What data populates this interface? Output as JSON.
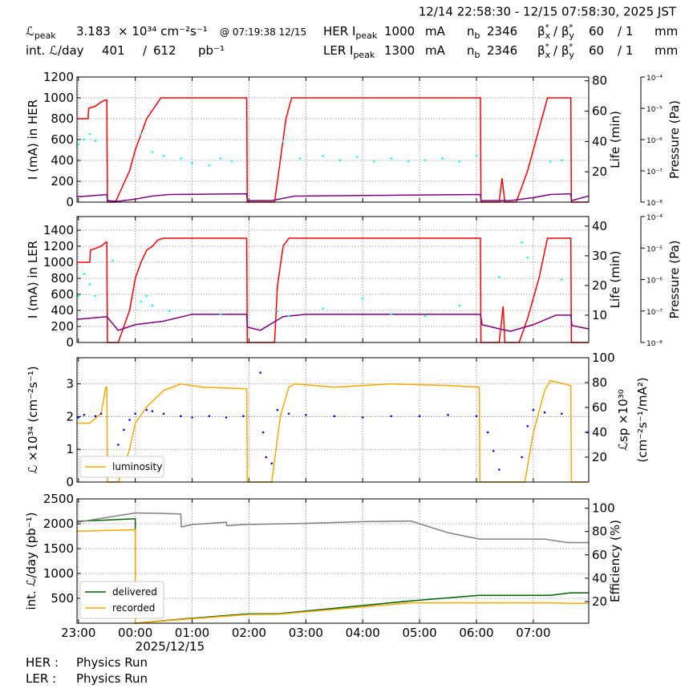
{
  "header": {
    "timespan": "12/14 22:58:30 - 12/15 07:58:30, 2025 JST",
    "row1": [
      {
        "text": "ℒ",
        "sub": "peak"
      },
      "3.183",
      "× 10³⁴ cm⁻²s⁻¹",
      "@ 07:19:38 12/15",
      {
        "text": "HER I",
        "sub": "peak"
      },
      "1000",
      "mA",
      {
        "text": "n",
        "sub": "b"
      },
      "2346",
      {
        "text": "β",
        "sup": "*",
        "sub": "x"
      },
      {
        "text": "/ β",
        "sup": "*",
        "sub": "y"
      },
      "60",
      "/ 1",
      "mm"
    ],
    "row2": [
      "int. ℒ/day",
      "401",
      "/",
      "612",
      "pb⁻¹",
      {
        "text": "LER I",
        "sub": "peak"
      },
      "1300",
      "mA",
      {
        "text": "n",
        "sub": "b"
      },
      "2346",
      {
        "text": "β",
        "sup": "*",
        "sub": "x"
      },
      {
        "text": "/ β",
        "sup": "*",
        "sub": "y"
      },
      "60",
      "/ 1",
      "mm"
    ]
  },
  "footer": [
    [
      "HER :",
      "Physics Run"
    ],
    [
      "LER :",
      "Physics Run"
    ]
  ],
  "chart_data": [
    {
      "type": "line",
      "ylabel": "I (mA) in HER",
      "y2label": [
        "Life (min)"
      ],
      "y3label": "Pressure (Pa)",
      "grid": true,
      "xlim": [
        -1.025,
        7.975
      ],
      "xticks": [
        -1,
        0,
        1,
        2,
        3,
        4,
        5,
        6,
        7
      ],
      "ylim": [
        0,
        1200
      ],
      "yticks": [
        0,
        200,
        400,
        600,
        800,
        1000,
        1200
      ],
      "y2lim": [
        0,
        82.5
      ],
      "y2ticks": [
        20,
        40,
        60,
        80
      ],
      "y3scale": "log",
      "y3lim": [
        1e-08,
        0.0001
      ],
      "y3ticks": [
        {
          "value": 1e-08,
          "label": "10⁻⁸"
        },
        {
          "value": 1e-07,
          "label": "10⁻⁷"
        },
        {
          "value": 1e-06,
          "label": "10⁻⁶"
        },
        {
          "value": 1e-05,
          "label": "10⁻⁵"
        },
        {
          "value": 0.0001,
          "label": "10⁻⁴"
        }
      ],
      "series": [
        {
          "type": "line",
          "axis": "y",
          "color": "#ff0000",
          "x": [
            -1.025,
            -0.83,
            -0.82,
            -0.7,
            -0.6,
            -0.52,
            -0.5,
            -0.49,
            -0.35,
            -0.1,
            0,
            0.2,
            0.45,
            0.55,
            1.96,
            1.97,
            2.45,
            2.55,
            2.65,
            2.75,
            6.07,
            6.08,
            6.4,
            6.45,
            6.5,
            6.7,
            6.9,
            7.1,
            7.25,
            7.66,
            7.67,
            7.97
          ],
          "values": [
            800,
            800,
            900,
            920,
            960,
            980,
            980,
            0,
            0,
            300,
            500,
            800,
            1000,
            1000,
            1000,
            0,
            0,
            400,
            800,
            1000,
            1000,
            0,
            0,
            230,
            0,
            0,
            300,
            700,
            1000,
            1000,
            0,
            0
          ]
        },
        {
          "type": "line",
          "axis": "y2",
          "color": "#800080",
          "x": [
            -1.025,
            -0.5,
            -0.49,
            -0.3,
            0,
            0.3,
            0.6,
            1.96,
            1.97,
            2.4,
            2.8,
            6.07,
            6.08,
            6.6,
            7.0,
            7.3,
            7.66,
            7.67,
            7.97
          ],
          "values": [
            3.5,
            5,
            1,
            0.5,
            2,
            4,
            5,
            5.5,
            1,
            1,
            4,
            5,
            1,
            1,
            3,
            5,
            5.5,
            1,
            4
          ]
        },
        {
          "type": "scatter",
          "axis": "y3",
          "color": "#00ffff",
          "x": [
            -1.0,
            -0.9,
            -0.8,
            -0.7,
            0.1,
            0.3,
            0.5,
            0.8,
            1.0,
            1.3,
            1.5,
            1.7,
            2.6,
            2.9,
            3.3,
            3.6,
            3.9,
            4.2,
            4.5,
            4.8,
            5.1,
            5.4,
            5.7,
            6.0,
            7.3,
            7.5
          ],
          "values": [
            7e-07,
            1e-06,
            1.5e-06,
            9e-07,
            1.5e-06,
            4e-07,
            3e-07,
            2.5e-07,
            1.8e-07,
            1.5e-07,
            2.5e-07,
            2e-07,
            9e-07,
            2.5e-07,
            3e-07,
            2.2e-07,
            2.8e-07,
            2e-07,
            2.5e-07,
            2e-07,
            2.2e-07,
            2.5e-07,
            2e-07,
            3e-07,
            2e-07,
            2.2e-07
          ]
        }
      ]
    },
    {
      "type": "line",
      "ylabel": "I (mA) in LER",
      "y2label": [
        "Life (min)"
      ],
      "y3label": "Pressure (Pa)",
      "grid": true,
      "xlim": [
        -1.025,
        7.975
      ],
      "xticks": [
        -1,
        0,
        1,
        2,
        3,
        4,
        5,
        6,
        7
      ],
      "ylim": [
        0,
        1570
      ],
      "yticks": [
        0,
        200,
        400,
        600,
        800,
        1000,
        1200,
        1400
      ],
      "y2lim": [
        0.8,
        43.2
      ],
      "y2ticks": [
        10,
        20,
        30,
        40
      ],
      "y3scale": "log",
      "y3lim": [
        1e-08,
        0.0001
      ],
      "y3ticks": [
        {
          "value": 1e-08,
          "label": "10⁻⁸"
        },
        {
          "value": 1e-07,
          "label": "10⁻⁷"
        },
        {
          "value": 1e-06,
          "label": "10⁻⁶"
        },
        {
          "value": 1e-05,
          "label": "10⁻⁵"
        },
        {
          "value": 0.0001,
          "label": "10⁻⁴"
        }
      ],
      "series": [
        {
          "type": "line",
          "axis": "y",
          "color": "#ff0000",
          "x": [
            -1.025,
            -0.8,
            -0.79,
            -0.6,
            -0.52,
            -0.5,
            -0.49,
            -0.3,
            -0.1,
            0,
            0.1,
            0.2,
            0.3,
            0.4,
            0.5,
            1.96,
            1.97,
            2.45,
            2.5,
            2.6,
            2.7,
            6.07,
            6.08,
            6.4,
            6.47,
            6.5,
            6.75,
            6.9,
            7.1,
            7.25,
            7.66,
            7.67,
            7.97
          ],
          "values": [
            1000,
            1000,
            1150,
            1200,
            1250,
            1250,
            0,
            0,
            400,
            800,
            1000,
            1150,
            1200,
            1280,
            1300,
            1300,
            0,
            0,
            700,
            1200,
            1300,
            1300,
            0,
            0,
            450,
            0,
            0,
            300,
            800,
            1300,
            1300,
            0,
            0
          ]
        },
        {
          "type": "line",
          "axis": "y2",
          "color": "#800080",
          "x": [
            -1.025,
            -0.5,
            -0.3,
            0,
            0.5,
            1.0,
            1.96,
            1.97,
            2.2,
            2.6,
            3.0,
            6.07,
            6.1,
            6.4,
            6.6,
            7.0,
            7.4,
            7.66,
            7.68,
            7.97
          ],
          "values": [
            8.6,
            9.5,
            4.9,
            6.8,
            8,
            10.3,
            10.3,
            6,
            4.9,
            9.5,
            10.3,
            10.3,
            6.8,
            5.4,
            4.6,
            6.8,
            10,
            10,
            6.5,
            5.4
          ]
        },
        {
          "type": "scatter",
          "axis": "y3",
          "color": "#00ffff",
          "x": [
            -1.0,
            -0.9,
            -0.8,
            -0.7,
            -0.4,
            0.1,
            0.2,
            0.3,
            0.6,
            1.5,
            2.5,
            2.7,
            3.3,
            4.0,
            4.5,
            5.1,
            5.7,
            6.4,
            6.8,
            6.9,
            7.5
          ],
          "values": [
            3e-07,
            1.5e-06,
            7e-07,
            3e-07,
            4e-06,
            2e-07,
            3e-07,
            1.5e-07,
            1e-07,
            8e-08,
            1e-07,
            7e-08,
            1.2e-07,
            2.5e-07,
            8e-08,
            7e-08,
            1.5e-07,
            1.2e-06,
            1.5e-05,
            5e-06,
            1e-06
          ]
        }
      ]
    },
    {
      "type": "line",
      "ylabel": "ℒ ×10³⁴ (cm⁻²s⁻¹)",
      "y2label": [
        "ℒsp ×10³⁰",
        "(cm⁻²s⁻¹/mA²)"
      ],
      "grid": true,
      "legend": "lower left",
      "xlim": [
        -1.025,
        7.975
      ],
      "xticks": [
        -1,
        0,
        1,
        2,
        3,
        4,
        5,
        6,
        7
      ],
      "ylim": [
        0,
        3.8
      ],
      "yticks": [
        0,
        1,
        2,
        3
      ],
      "y2lim": [
        0,
        100
      ],
      "y2ticks": [
        20,
        40,
        60,
        80,
        100
      ],
      "series": [
        {
          "name": "luminosity",
          "type": "line",
          "axis": "y",
          "color": "#ffa500",
          "x": [
            -1.025,
            -0.8,
            -0.6,
            -0.52,
            -0.5,
            -0.49,
            -0.3,
            -0.1,
            0,
            0.2,
            0.5,
            0.8,
            1.2,
            1.96,
            1.97,
            2.4,
            2.55,
            2.7,
            2.8,
            3.5,
            4.5,
            5.5,
            6.05,
            6.06,
            6.85,
            7.0,
            7.2,
            7.3,
            7.66,
            7.67,
            7.97
          ],
          "values": [
            1.8,
            1.8,
            2.1,
            2.9,
            2.9,
            0,
            0,
            1.0,
            1.8,
            2.3,
            2.8,
            3.0,
            2.9,
            2.85,
            0,
            0,
            2.0,
            2.9,
            3.0,
            2.9,
            3.0,
            2.95,
            2.9,
            0,
            0,
            1.5,
            2.8,
            3.1,
            2.95,
            0,
            0
          ]
        },
        {
          "type": "scatter",
          "axis": "y2",
          "color": "#0000ff",
          "x": [
            -1.0,
            -0.9,
            -0.7,
            -0.6,
            -0.3,
            -0.2,
            -0.1,
            0,
            0.2,
            0.3,
            0.5,
            0.8,
            1.0,
            1.3,
            1.6,
            1.9,
            2.2,
            2.25,
            2.3,
            2.4,
            2.5,
            2.7,
            3.0,
            3.5,
            4.0,
            4.5,
            5.0,
            5.5,
            6.0,
            6.2,
            6.3,
            6.4,
            6.8,
            6.9,
            7.0,
            7.2,
            7.5,
            7.95
          ],
          "values": [
            52,
            54,
            53,
            55,
            30,
            42,
            50,
            55,
            58,
            57,
            55,
            53,
            52,
            53,
            52,
            53,
            88,
            40,
            20,
            15,
            58,
            55,
            54,
            53,
            52,
            53,
            53,
            54,
            53,
            40,
            25,
            10,
            20,
            45,
            58,
            56,
            55,
            40
          ]
        }
      ]
    },
    {
      "type": "line",
      "ylabel": "int. ℒ/day (pb⁻¹)",
      "y2label": [
        "Efficiency (%)"
      ],
      "grid": true,
      "legend": "lower left",
      "xlim": [
        -1.025,
        7.975
      ],
      "xticks": [
        {
          "value": -1,
          "label": "23:00"
        },
        {
          "value": 0,
          "label": "00:00"
        },
        {
          "value": 1,
          "label": "01:00"
        },
        {
          "value": 2,
          "label": "02:00"
        },
        {
          "value": 3,
          "label": "03:00"
        },
        {
          "value": 4,
          "label": "04:00"
        },
        {
          "value": 5,
          "label": "05:00"
        },
        {
          "value": 6,
          "label": "06:00"
        },
        {
          "value": 7,
          "label": "07:00"
        }
      ],
      "xsublabel": "2025/12/15",
      "ylim": [
        0,
        2500
      ],
      "yticks": [
        500,
        1000,
        1500,
        2000,
        2500
      ],
      "y2lim": [
        1.4,
        108
      ],
      "y2ticks": [
        20,
        40,
        60,
        80,
        100
      ],
      "series": [
        {
          "name": "delivered",
          "type": "line",
          "axis": "y",
          "color": "#006400",
          "x": [
            -1.025,
            0,
            0.001,
            1.0,
            2.0,
            2.5,
            4.85,
            6.05,
            7.3,
            7.65,
            7.97
          ],
          "values": [
            2050,
            2100,
            0,
            100,
            190,
            190,
            450,
            560,
            560,
            610,
            610
          ]
        },
        {
          "name": "recorded",
          "type": "line",
          "axis": "y",
          "color": "#ffa500",
          "x": [
            -1.025,
            0,
            0.001,
            1.0,
            2.0,
            2.5,
            4.85,
            6.05,
            7.3,
            7.65,
            7.97
          ],
          "values": [
            1850,
            1880,
            0,
            90,
            175,
            180,
            410,
            410,
            410,
            400,
            400
          ]
        },
        {
          "type": "line",
          "axis": "y2",
          "color": "#808080",
          "x": [
            -1.025,
            0,
            0.5,
            0.8,
            0.81,
            1.0,
            1.6,
            1.61,
            1.9,
            3.0,
            4.0,
            4.85,
            5.5,
            6.05,
            7.2,
            7.6,
            7.97
          ],
          "values": [
            88,
            96,
            95.5,
            95,
            84,
            86,
            88,
            85,
            86,
            87,
            88.5,
            89,
            79,
            73.5,
            73.5,
            70.5,
            70.5
          ]
        }
      ]
    }
  ]
}
